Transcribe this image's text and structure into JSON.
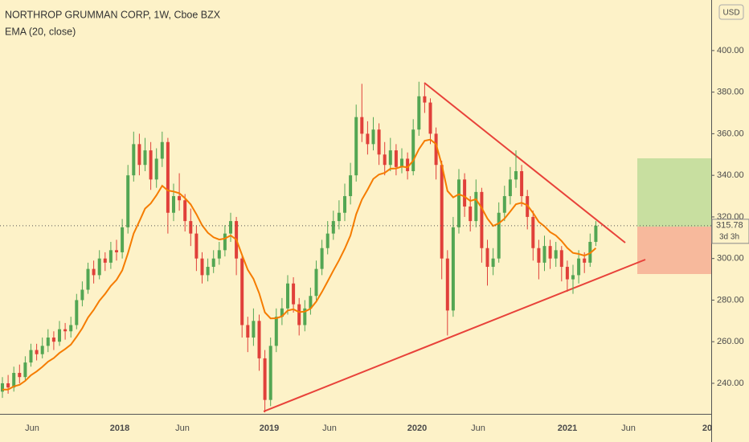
{
  "chart_data": {
    "type": "candlestick",
    "title": "NORTHROP GRUMMAN CORP, 1W, Cboe BZX",
    "subtitle": "EMA (20, close)",
    "currency": "USD",
    "up_color": "#53a653",
    "down_color": "#e0403a",
    "ema_color": "#f57c00",
    "grid": false,
    "ylim": [
      225.3,
      424.3
    ],
    "yticks": [
      {
        "value": 240,
        "label": "240.00"
      },
      {
        "value": 260,
        "label": "260.00"
      },
      {
        "value": 280,
        "label": "280.00"
      },
      {
        "value": 300,
        "label": "300.00"
      },
      {
        "value": 320,
        "label": "320.00"
      },
      {
        "value": 340,
        "label": "340.00"
      },
      {
        "value": 360,
        "label": "360.00"
      },
      {
        "value": 380,
        "label": "380.00"
      },
      {
        "value": 400,
        "label": "400.00"
      }
    ],
    "x_labels": [
      "Jun",
      "2018",
      "Jun",
      "2019",
      "Jun",
      "2020",
      "Jun",
      "2021",
      "Jun",
      "20"
    ],
    "open": [
      236,
      240,
      238,
      245,
      243,
      250,
      256,
      254,
      258,
      262,
      260,
      266,
      265,
      268,
      280,
      285,
      295,
      292,
      300,
      298,
      304,
      303,
      315,
      340,
      355,
      345,
      352,
      338,
      348,
      356,
      322,
      330,
      328,
      318,
      312,
      300,
      292,
      296,
      300,
      304,
      312,
      318,
      300,
      268,
      262,
      270,
      252,
      232,
      258,
      272,
      276,
      288,
      278,
      268,
      276,
      282,
      295,
      305,
      312,
      318,
      322,
      330,
      340,
      368,
      360,
      355,
      362,
      350,
      345,
      352,
      344,
      348,
      342,
      362,
      378,
      375,
      360,
      345,
      300,
      275,
      315,
      338,
      325,
      318,
      332,
      305,
      296,
      300,
      322,
      330,
      338,
      342,
      330,
      320,
      305,
      298,
      306,
      300,
      304,
      296,
      290,
      292,
      300,
      298,
      308
    ],
    "high": [
      243,
      244,
      248,
      249,
      253,
      259,
      259,
      262,
      266,
      265,
      270,
      269,
      272,
      283,
      289,
      298,
      299,
      304,
      303,
      308,
      309,
      319,
      345,
      361,
      360,
      358,
      356,
      353,
      361,
      358,
      336,
      341,
      331,
      324,
      316,
      303,
      300,
      304,
      308,
      316,
      322,
      320,
      302,
      272,
      276,
      273,
      256,
      262,
      276,
      281,
      292,
      291,
      281,
      280,
      286,
      299,
      309,
      318,
      323,
      328,
      336,
      346,
      374,
      384,
      366,
      368,
      365,
      356,
      358,
      355,
      353,
      351,
      367,
      385,
      384,
      377,
      363,
      347,
      304,
      320,
      343,
      341,
      330,
      338,
      334,
      309,
      305,
      327,
      335,
      344,
      352,
      345,
      333,
      323,
      309,
      311,
      309,
      308,
      306,
      299,
      297,
      304,
      303,
      312,
      318
    ],
    "low": [
      233,
      235,
      236,
      240,
      241,
      248,
      251,
      252,
      255,
      256,
      258,
      261,
      262,
      266,
      277,
      283,
      288,
      290,
      294,
      295,
      299,
      300,
      312,
      337,
      340,
      342,
      333,
      334,
      344,
      312,
      318,
      323,
      313,
      306,
      294,
      288,
      289,
      293,
      297,
      301,
      308,
      292,
      262,
      255,
      258,
      246,
      226,
      229,
      255,
      268,
      273,
      274,
      263,
      265,
      273,
      280,
      292,
      302,
      309,
      314,
      318,
      326,
      337,
      356,
      350,
      352,
      345,
      340,
      342,
      340,
      341,
      338,
      340,
      359,
      370,
      355,
      338,
      290,
      263,
      272,
      312,
      320,
      313,
      315,
      298,
      287,
      292,
      298,
      318,
      326,
      334,
      325,
      314,
      299,
      290,
      294,
      295,
      296,
      289,
      284,
      283,
      288,
      293,
      296,
      306
    ],
    "close": [
      240,
      238,
      245,
      243,
      250,
      256,
      254,
      258,
      262,
      260,
      266,
      265,
      268,
      280,
      285,
      295,
      292,
      300,
      298,
      304,
      303,
      315,
      340,
      355,
      345,
      352,
      338,
      348,
      356,
      322,
      330,
      328,
      318,
      312,
      300,
      292,
      296,
      300,
      304,
      312,
      318,
      300,
      268,
      262,
      270,
      252,
      232,
      258,
      272,
      276,
      288,
      278,
      268,
      276,
      282,
      295,
      305,
      312,
      318,
      322,
      330,
      340,
      368,
      360,
      355,
      362,
      350,
      345,
      352,
      344,
      348,
      342,
      362,
      378,
      375,
      360,
      345,
      300,
      275,
      315,
      338,
      325,
      318,
      332,
      305,
      296,
      300,
      322,
      330,
      338,
      342,
      330,
      320,
      305,
      298,
      306,
      300,
      304,
      296,
      290,
      292,
      300,
      298,
      308,
      315.78
    ],
    "ema": [
      237,
      237,
      238.5,
      239.3,
      241.2,
      243.9,
      245.7,
      247.9,
      250.4,
      252.1,
      254.6,
      256.5,
      258.6,
      262.4,
      266.5,
      271.6,
      275.3,
      279.7,
      283,
      286.8,
      289.7,
      294.3,
      302.5,
      312,
      317.9,
      324,
      326.5,
      330.4,
      335,
      332.7,
      332.2,
      331.4,
      329,
      326,
      321.3,
      316,
      312.4,
      310.2,
      309.1,
      309.6,
      311.1,
      309.1,
      301.7,
      294.6,
      290.2,
      283.3,
      274.1,
      271.2,
      271.3,
      272.2,
      275,
      275.6,
      274.2,
      274.5,
      275.9,
      279.3,
      283.9,
      289,
      294.2,
      299.2,
      304.7,
      311.1,
      321.3,
      328.3,
      333.1,
      338.3,
      340.4,
      341.2,
      343.2,
      343.3,
      344.2,
      343.8,
      347.1,
      352.6,
      356.6,
      357.2,
      355,
      345.1,
      332.5,
      329.4,
      330.9,
      329.8,
      327.7,
      328.5,
      324.3,
      319.2,
      315.7,
      316.9,
      319.2,
      322.6,
      326.1,
      326.8,
      325.6,
      321.9,
      317.6,
      315.5,
      312.7,
      311.1,
      308.4,
      305.1,
      302.7,
      302.2,
      301.4,
      302.6,
      305
    ],
    "last_price": 315.78,
    "countdown": "3d 3h"
  }
}
